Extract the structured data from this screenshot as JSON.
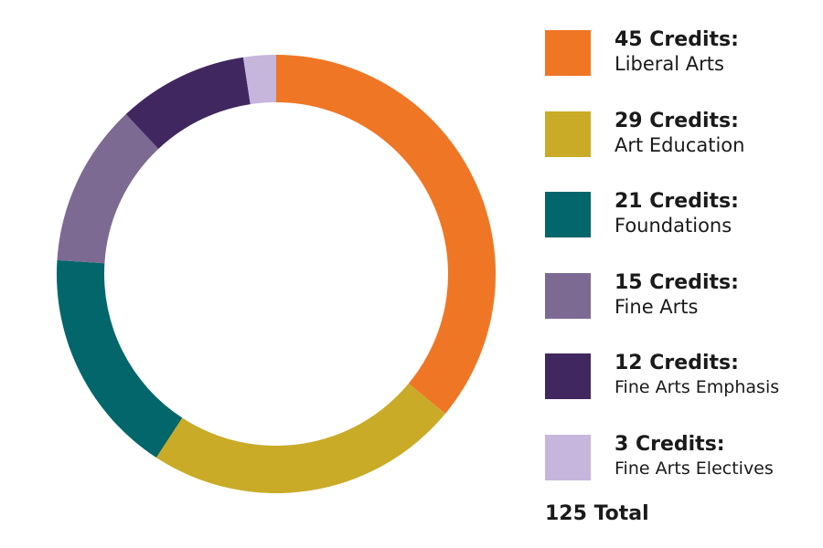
{
  "chart_data": {
    "type": "pie",
    "style": "donut",
    "legend_position": "right",
    "slices": [
      {
        "credits_label": "45 Credits:",
        "label": "Liberal Arts",
        "value": 45,
        "color": "#ef7625"
      },
      {
        "credits_label": "29 Credits:",
        "label": "Art Education",
        "value": 29,
        "color": "#c9ab27"
      },
      {
        "credits_label": "21 Credits:",
        "label": "Foundations",
        "value": 21,
        "color": "#02666a"
      },
      {
        "credits_label": "15 Credits:",
        "label": "Fine Arts",
        "value": 15,
        "color": "#7d6a92"
      },
      {
        "credits_label": "12 Credits:",
        "label": "Fine Arts Emphasis",
        "value": 12,
        "color": "#41275f"
      },
      {
        "credits_label": "3 Credits:",
        "label": "Fine Arts Electives",
        "value": 3,
        "color": "#c6b6dc"
      }
    ],
    "total_label": "125 Total",
    "total": 125
  }
}
